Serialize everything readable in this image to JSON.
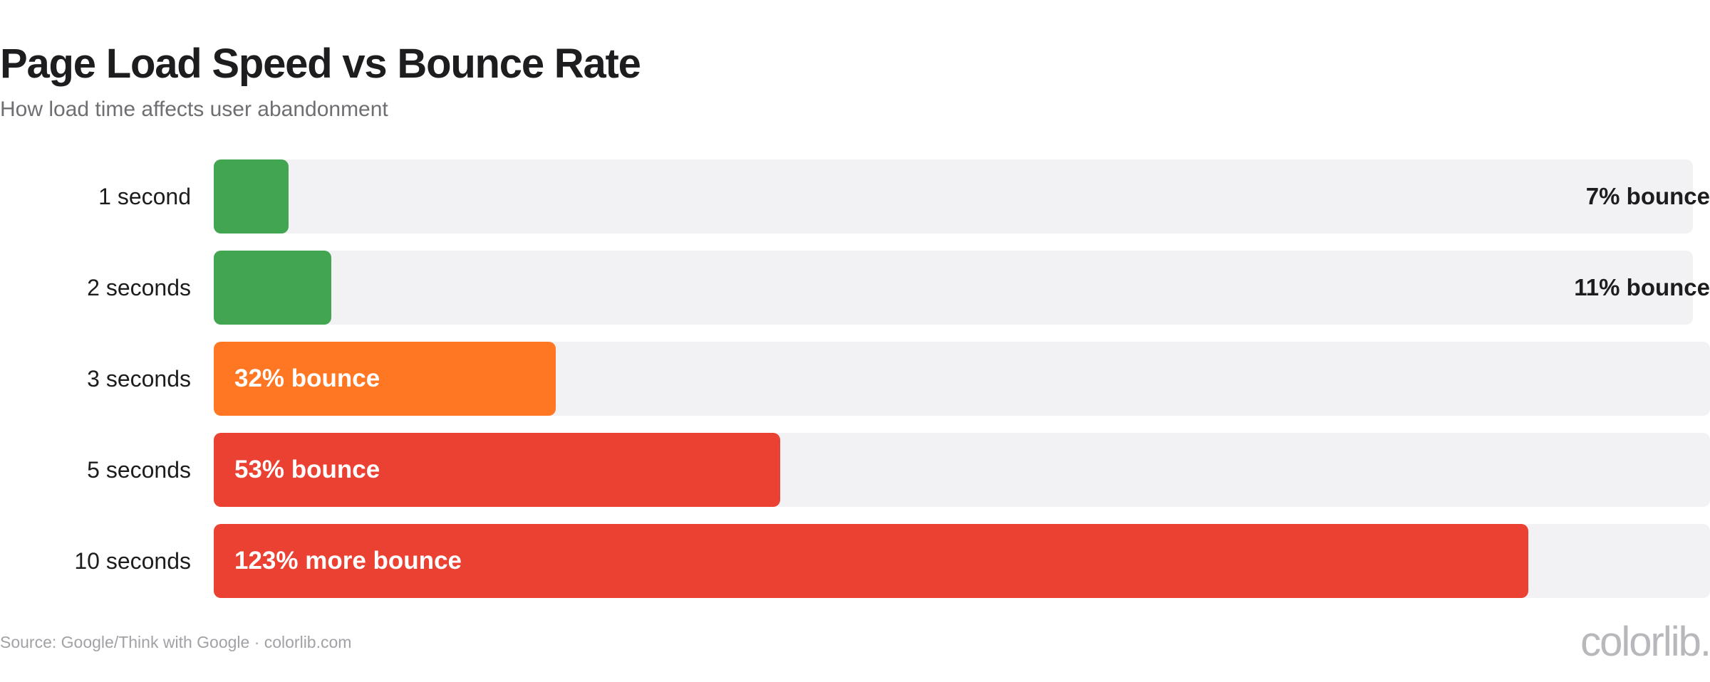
{
  "chart_data": {
    "type": "bar",
    "title": "Page Load Speed vs Bounce Rate",
    "subtitle": "How load time affects user abandonment",
    "categories": [
      "1 second",
      "2 seconds",
      "3 seconds",
      "5 seconds",
      "10 seconds"
    ],
    "values": [
      7,
      11,
      32,
      53,
      123
    ],
    "value_labels": [
      "7% bounce",
      "11% bounce",
      "32% bounce",
      "53% bounce",
      "123% more bounce"
    ],
    "label_position": [
      "outside",
      "outside",
      "inside",
      "inside",
      "inside"
    ],
    "colors": [
      "#41a551",
      "#41a551",
      "#ff7723",
      "#eb4132",
      "#eb4132"
    ],
    "track_color": "#f2f1f3",
    "grid": false,
    "legend": "none",
    "source": "Source: Google/Think with Google · colorlib.com",
    "brand": "colorlib."
  }
}
